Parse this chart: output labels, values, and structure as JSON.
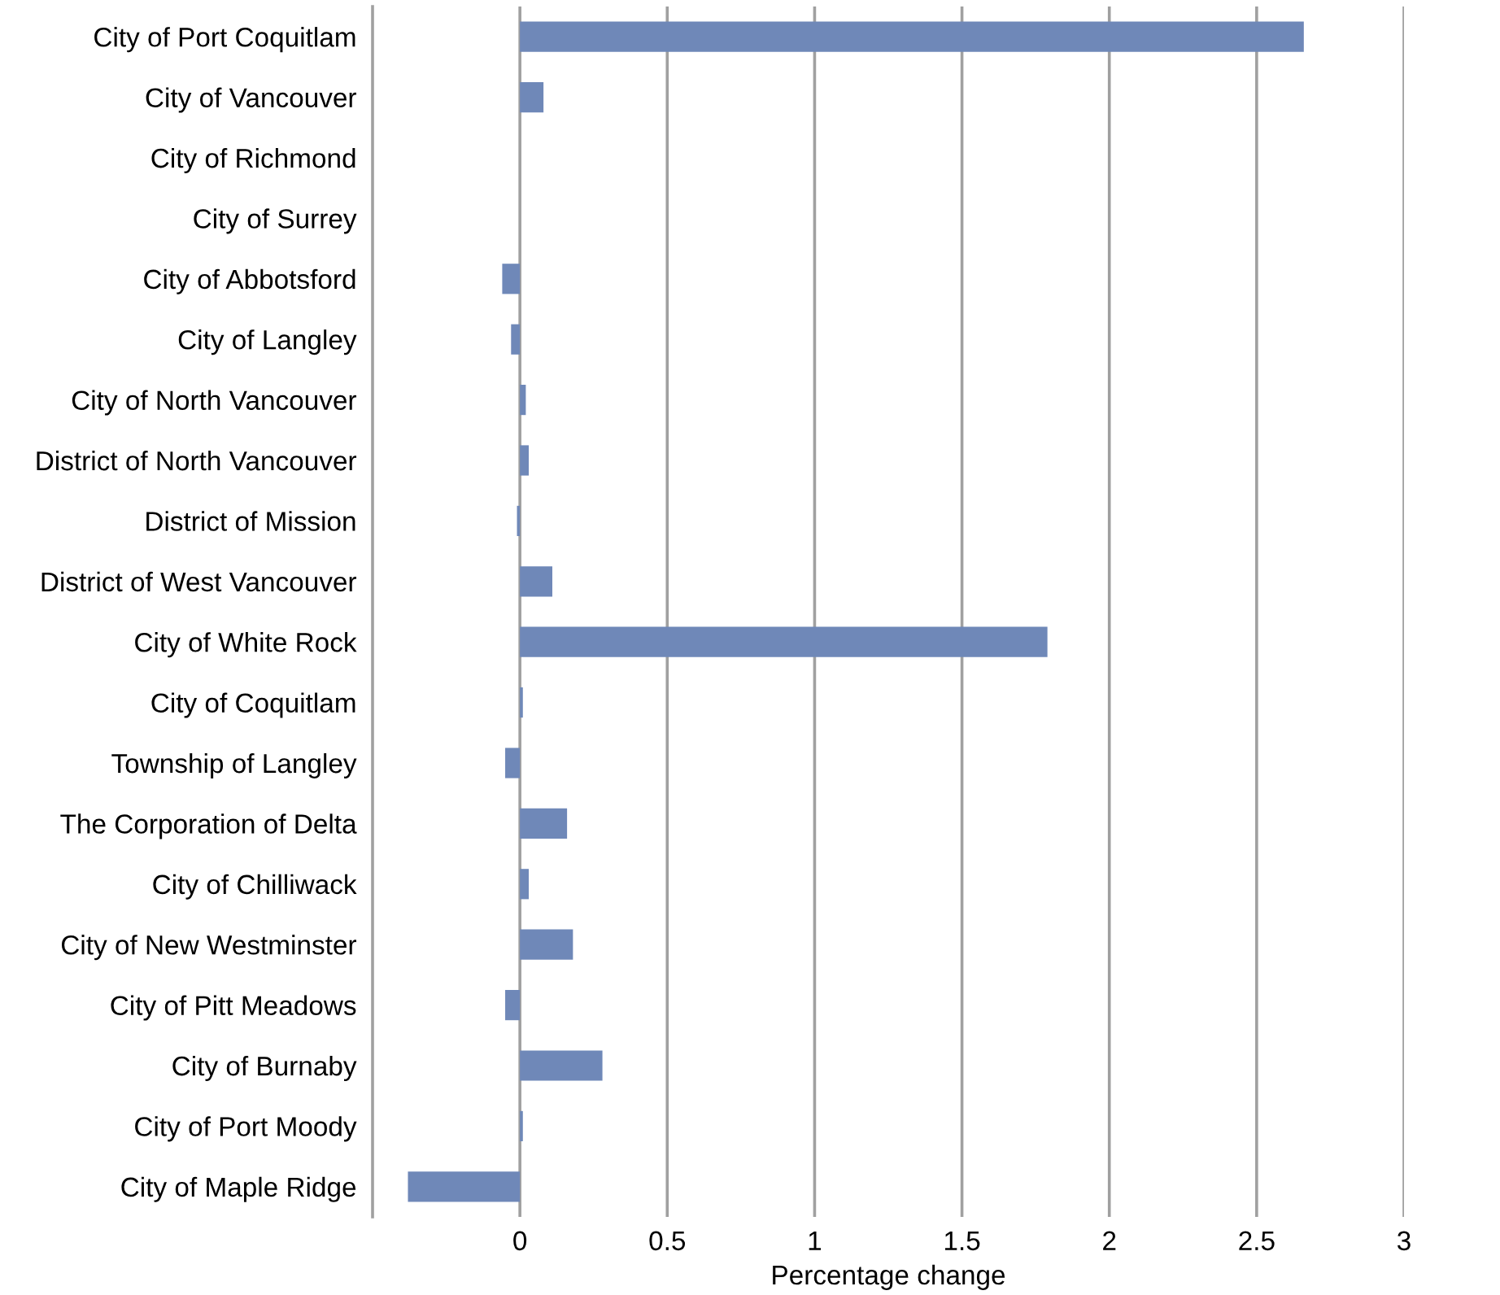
{
  "chart_data": {
    "type": "bar",
    "orientation": "horizontal",
    "xlabel": "Percentage change",
    "categories": [
      "City of Port Coquitlam",
      "City of Vancouver",
      "City of Richmond",
      "City of Surrey",
      "City of Abbotsford",
      "City of Langley",
      "City of North Vancouver",
      "District of North Vancouver",
      "District of Mission",
      "District of West Vancouver",
      "City of White Rock",
      "City of Coquitlam",
      "Township of Langley",
      "The Corporation of Delta",
      "City of Chilliwack",
      "City of New Westminster",
      "City of Pitt Meadows",
      "City of Burnaby",
      "City of Port Moody",
      "City of Maple Ridge"
    ],
    "values": [
      2.66,
      0.08,
      0,
      0,
      -0.06,
      -0.03,
      0.02,
      0.03,
      -0.01,
      0.11,
      1.79,
      0.01,
      -0.05,
      0.16,
      0.03,
      0.18,
      -0.05,
      0.28,
      0.01,
      -0.38
    ],
    "color": "#6f88b8",
    "xlim": [
      -0.5,
      3
    ],
    "xticks": [
      0,
      0.5,
      1,
      1.5,
      2,
      2.5,
      3
    ],
    "grid": "x",
    "legend": false
  }
}
